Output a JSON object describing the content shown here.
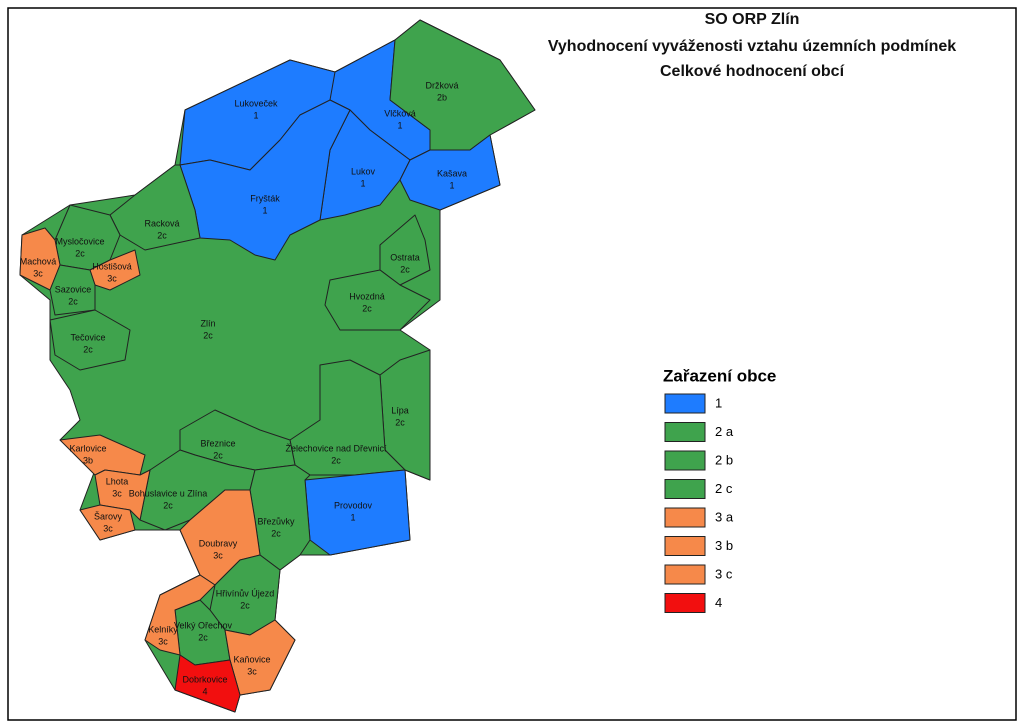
{
  "header": {
    "title": [
      "SO ORP Zlín",
      "Vyhodnocení vyváženosti vztahu územních podmínek",
      "Celkové hodnocení obcí"
    ]
  },
  "legend": {
    "title": "Zařazení obce",
    "items": [
      {
        "label": "1",
        "color": "#1e7cff"
      },
      {
        "label": "2 a",
        "color": "#3fa34d"
      },
      {
        "label": "2 b",
        "color": "#3fa34d"
      },
      {
        "label": "2 c",
        "color": "#3fa34d"
      },
      {
        "label": "3 a",
        "color": "#f6894a"
      },
      {
        "label": "3 b",
        "color": "#f6894a"
      },
      {
        "label": "3 c",
        "color": "#f6894a"
      },
      {
        "label": "4",
        "color": "#f20f0f"
      }
    ]
  },
  "regions": [
    {
      "name": "Zlín",
      "class": "2c",
      "color": "#3fa34d"
    },
    {
      "name": "Lukoveček",
      "class": "1",
      "color": "#1e7cff"
    },
    {
      "name": "Vlčková",
      "class": "1",
      "color": "#1e7cff"
    },
    {
      "name": "Držková",
      "class": "2b",
      "color": "#3fa34d"
    },
    {
      "name": "Lukov",
      "class": "1",
      "color": "#1e7cff"
    },
    {
      "name": "Kašava",
      "class": "1",
      "color": "#1e7cff"
    },
    {
      "name": "Fryšták",
      "class": "1",
      "color": "#1e7cff"
    },
    {
      "name": "Racková",
      "class": "2c",
      "color": "#3fa34d"
    },
    {
      "name": "Mysločovice",
      "class": "2c",
      "color": "#3fa34d"
    },
    {
      "name": "Machová",
      "class": "3c",
      "color": "#f6894a"
    },
    {
      "name": "Hostišová",
      "class": "3c",
      "color": "#f6894a"
    },
    {
      "name": "Sazovice",
      "class": "2c",
      "color": "#3fa34d"
    },
    {
      "name": "Tečovice",
      "class": "2c",
      "color": "#3fa34d"
    },
    {
      "name": "Ostrata",
      "class": "2c",
      "color": "#3fa34d"
    },
    {
      "name": "Hvozdná",
      "class": "2c",
      "color": "#3fa34d"
    },
    {
      "name": "Lípa",
      "class": "2c",
      "color": "#3fa34d"
    },
    {
      "name": "Želechovice nad Dřevnicí",
      "class": "2c",
      "color": "#3fa34d"
    },
    {
      "name": "Provodov",
      "class": "1",
      "color": "#1e7cff"
    },
    {
      "name": "Březnice",
      "class": "2c",
      "color": "#3fa34d"
    },
    {
      "name": "Bohuslavice u Zlína",
      "class": "2c",
      "color": "#3fa34d"
    },
    {
      "name": "Karlovice",
      "class": "3b",
      "color": "#f6894a"
    },
    {
      "name": "Lhota",
      "class": "3c",
      "color": "#f6894a"
    },
    {
      "name": "Šarovy",
      "class": "3c",
      "color": "#f6894a"
    },
    {
      "name": "Březůvky",
      "class": "2c",
      "color": "#3fa34d"
    },
    {
      "name": "Doubravy",
      "class": "3c",
      "color": "#f6894a"
    },
    {
      "name": "Hřivínův Újezd",
      "class": "2c",
      "color": "#3fa34d"
    },
    {
      "name": "Velký Ořechov",
      "class": "2c",
      "color": "#3fa34d"
    },
    {
      "name": "Kelníky",
      "class": "3c",
      "color": "#f6894a"
    },
    {
      "name": "Kaňovice",
      "class": "3c",
      "color": "#f6894a"
    },
    {
      "name": "Dobrkovice",
      "class": "4",
      "color": "#f20f0f"
    }
  ]
}
